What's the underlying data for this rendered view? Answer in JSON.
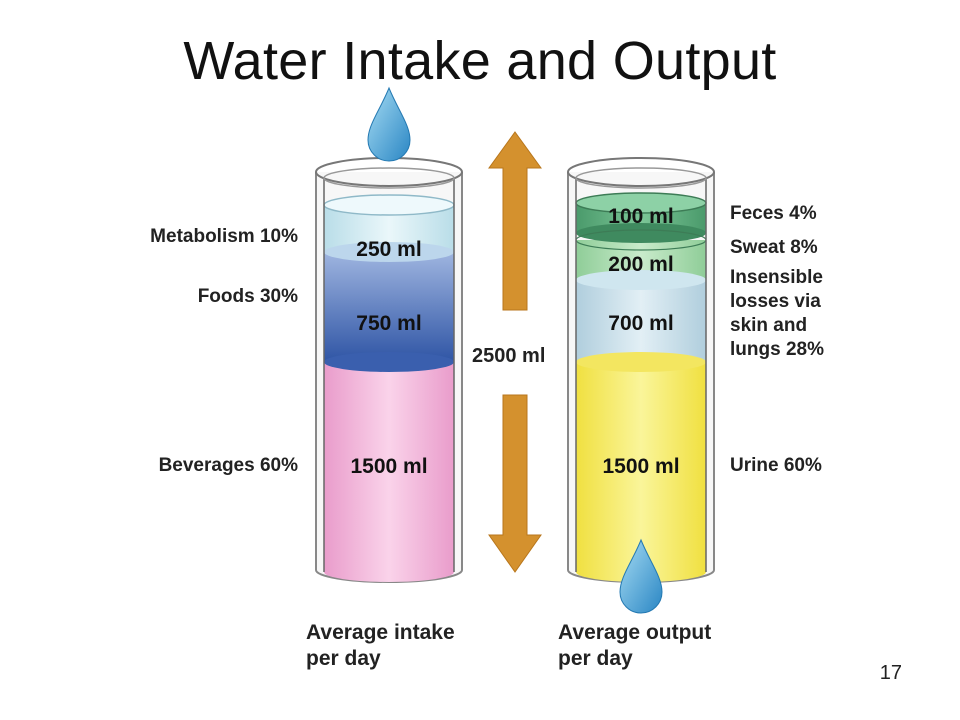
{
  "title": "Water Intake and Output",
  "center_total": "2500 ml",
  "page_number": "17",
  "intake": {
    "caption_line1": "Average intake",
    "caption_line2": "per day",
    "segments": [
      {
        "label": "Metabolism 10%",
        "amount": "250 ml",
        "color": "#d7eef4"
      },
      {
        "label": "Foods 30%",
        "amount": "750 ml",
        "color": "#5a7cc0"
      },
      {
        "label": "Beverages 60%",
        "amount": "1500 ml",
        "color": "#f3b6dc"
      }
    ]
  },
  "output": {
    "caption_line1": "Average output",
    "caption_line2": "per day",
    "segments": [
      {
        "label": "Feces 4%",
        "amount": "100 ml",
        "color": "#5fae7e"
      },
      {
        "label": "Sweat 8%",
        "amount": "200 ml",
        "color": "#a9dcae"
      },
      {
        "label_lines": [
          "Insensible",
          "losses via",
          "skin and",
          "lungs 28%"
        ],
        "amount": "700 ml",
        "color": "#cfe2ec"
      },
      {
        "label": "Urine 60%",
        "amount": "1500 ml",
        "color": "#f5ec62"
      }
    ]
  },
  "colors": {
    "arrow": "#d4912e",
    "drop": "#4aa8d8"
  }
}
